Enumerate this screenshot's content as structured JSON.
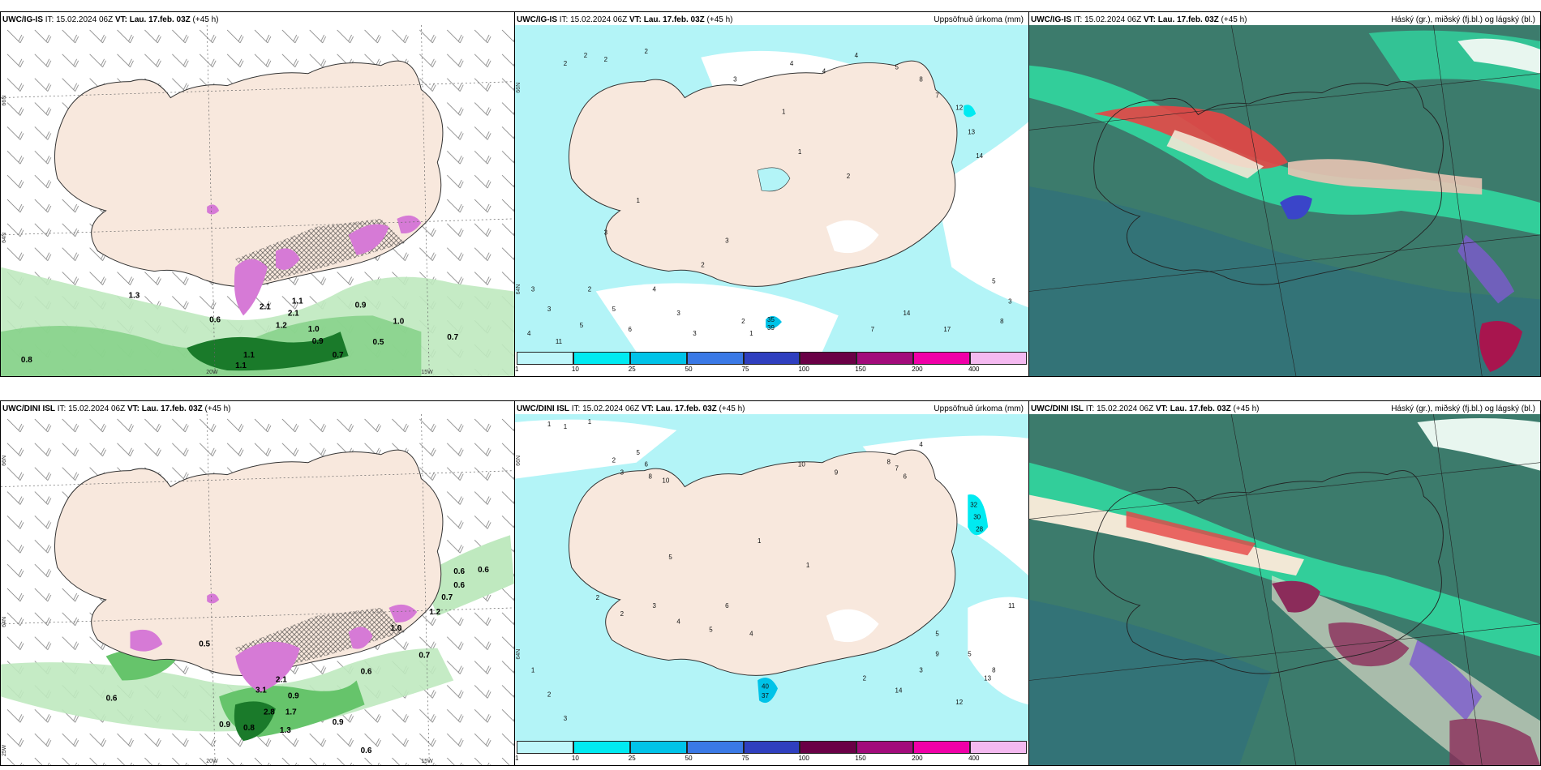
{
  "rows": [
    {
      "model": "UWC/IG-IS",
      "panels": [
        {
          "header": "UWC/IG-IS IT: 15.02.2024 06Z VT: Lau. 17.feb. 03Z (+45 h)",
          "right_title": ""
        },
        {
          "header": "UWC/IG-IS IT: 15.02.2024 06Z VT: Lau. 17.feb. 03Z (+45 h)",
          "right_title": "Uppsöfnuð úrkoma (mm)"
        },
        {
          "header": "UWC/IG-IS IT: 15.02.2024 06Z VT: Lau. 17.feb. 03Z (+45 h)",
          "right_title": "Háský (gr.), miðský (fj.bl.) og lágský (bl.)"
        }
      ],
      "left_labels": [
        "0.6",
        "2.1",
        "1.2",
        "2.1",
        "1.0",
        "0.9",
        "0.7",
        "0.5",
        "1.0",
        "0.7",
        "0.8",
        "1.3",
        "1.1",
        "1.1",
        "1.1",
        "0.9"
      ],
      "mid_numbers": [
        "2",
        "2",
        "2",
        "2",
        "3",
        "4",
        "4",
        "4",
        "5",
        "8",
        "7",
        "12",
        "13",
        "14",
        "1",
        "1",
        "2",
        "1",
        "3",
        "3",
        "2",
        "3",
        "5",
        "4",
        "4",
        "3",
        "2",
        "3",
        "11",
        "5",
        "6",
        "3",
        "2",
        "1",
        "35",
        "39",
        "7",
        "14",
        "17",
        "8",
        "5",
        "3"
      ]
    },
    {
      "model": "UWC/DINI ISL",
      "panels": [
        {
          "header": "UWC/DINI ISL IT: 15.02.2024 06Z VT: Lau. 17.feb. 03Z (+45 h)",
          "right_title": ""
        },
        {
          "header": "UWC/DINI ISL IT: 15.02.2024 06Z VT: Lau. 17.feb. 03Z (+45 h)",
          "right_title": "Uppsöfnuð úrkoma (mm)"
        },
        {
          "header": "UWC/DINI ISL IT: 15.02.2024 06Z VT: Lau. 17.feb. 03Z (+45 h)",
          "right_title": "Háský (gr.), miðský (fj.bl.) og lágský (bl.)"
        }
      ],
      "left_labels": [
        "0.6",
        "0.5",
        "0.9",
        "0.6",
        "0.6",
        "0.7",
        "0.7",
        "1.0",
        "1.2",
        "0.6",
        "0.9",
        "0.6",
        "1.3",
        "2.8",
        "0.9",
        "0.8",
        "1.7",
        "3.1",
        "2.1",
        "0.6"
      ],
      "mid_numbers": [
        "1",
        "1",
        "1",
        "2",
        "3",
        "5",
        "6",
        "8",
        "10",
        "10",
        "9",
        "8",
        "7",
        "6",
        "4",
        "1",
        "1",
        "2",
        "2",
        "3",
        "4",
        "5",
        "5",
        "6",
        "4",
        "40",
        "37",
        "32",
        "30",
        "28",
        "11",
        "8",
        "5",
        "2",
        "1",
        "3",
        "14",
        "13",
        "12",
        "9",
        "5",
        "3",
        "2"
      ]
    }
  ],
  "axis_labels": {
    "lat_66": "66N",
    "lat_64": "64N",
    "lat_63": "63N",
    "lon_20": "20W",
    "lon_15": "15W",
    "lon_25": "25W"
  },
  "colorbar_ticks": [
    "1",
    "10",
    "25",
    "50",
    "75",
    "100",
    "150",
    "200",
    "400"
  ],
  "colorbar_colors": [
    "#bff6fa",
    "#00eaf1",
    "#00c3e8",
    "#3a79e6",
    "#2f3fbf",
    "#6a0046",
    "#a20b7b",
    "#f000a8",
    "#f4b9f0"
  ],
  "colors": {
    "land": "#f8e8dd",
    "sea_precip": "#b3f4f7",
    "green_light": "#bfe9bf",
    "green_mid": "#66c46b",
    "green_dark": "#1a7a2a",
    "purple": "#d67ad6",
    "cloud_bg": "#3c7b6c",
    "cloud_mint": "#2fe3a6",
    "cloud_red": "#e64545",
    "cloud_cream": "#f2e8d6",
    "cloud_blue": "#3a45c9",
    "cloud_teal": "#2c6e82"
  }
}
